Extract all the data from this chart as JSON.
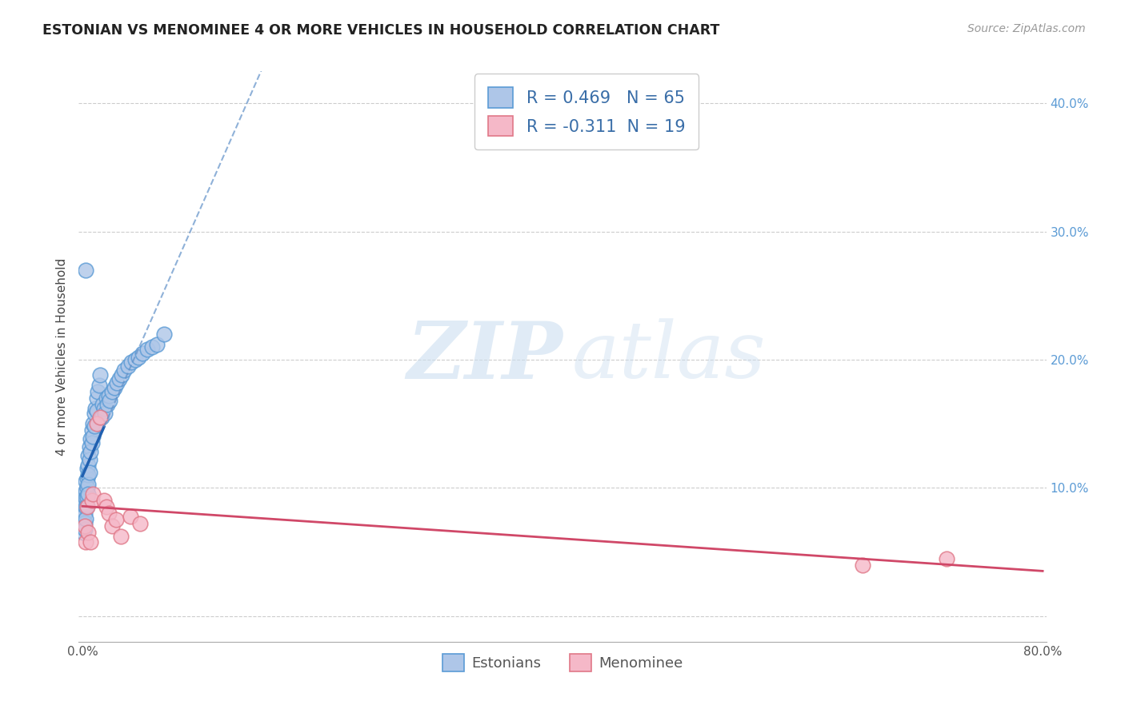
{
  "title": "ESTONIAN VS MENOMINEE 4 OR MORE VEHICLES IN HOUSEHOLD CORRELATION CHART",
  "source": "Source: ZipAtlas.com",
  "ylabel": "4 or more Vehicles in Household",
  "watermark_zip": "ZIP",
  "watermark_atlas": "atlas",
  "xlim": [
    -0.003,
    0.803
  ],
  "ylim": [
    -0.02,
    0.425
  ],
  "xtick_positions": [
    0.0,
    0.1,
    0.2,
    0.3,
    0.4,
    0.5,
    0.6,
    0.7,
    0.8
  ],
  "xtick_labels": [
    "0.0%",
    "",
    "",
    "",
    "",
    "",
    "",
    "",
    "80.0%"
  ],
  "ytick_positions": [
    0.0,
    0.1,
    0.2,
    0.3,
    0.4
  ],
  "ytick_labels": [
    "",
    "10.0%",
    "20.0%",
    "30.0%",
    "40.0%"
  ],
  "grid_color": "#cccccc",
  "bg_color": "#ffffff",
  "estonian_face": "#aec6e8",
  "estonian_edge": "#5b9bd5",
  "menominee_face": "#f5b8c8",
  "menominee_edge": "#e07888",
  "trend_estonian_solid": "#2060b0",
  "trend_estonian_dash": "#6090c8",
  "trend_menominee": "#d04868",
  "r_estonian": 0.469,
  "n_estonian": 65,
  "r_menominee": -0.311,
  "n_menominee": 19,
  "label_estonian": "Estonians",
  "label_menominee": "Menominee",
  "estonian_x": [
    0.001,
    0.001,
    0.001,
    0.001,
    0.002,
    0.002,
    0.002,
    0.002,
    0.002,
    0.003,
    0.003,
    0.003,
    0.003,
    0.003,
    0.003,
    0.004,
    0.004,
    0.004,
    0.004,
    0.004,
    0.005,
    0.005,
    0.005,
    0.005,
    0.005,
    0.006,
    0.006,
    0.006,
    0.007,
    0.007,
    0.008,
    0.008,
    0.009,
    0.009,
    0.01,
    0.01,
    0.011,
    0.012,
    0.012,
    0.013,
    0.014,
    0.015,
    0.016,
    0.017,
    0.018,
    0.019,
    0.02,
    0.021,
    0.022,
    0.023,
    0.025,
    0.027,
    0.029,
    0.031,
    0.033,
    0.035,
    0.038,
    0.041,
    0.044,
    0.047,
    0.05,
    0.054,
    0.058,
    0.062,
    0.068
  ],
  "estonian_y": [
    0.09,
    0.082,
    0.078,
    0.065,
    0.095,
    0.088,
    0.08,
    0.073,
    0.068,
    0.27,
    0.105,
    0.098,
    0.092,
    0.085,
    0.076,
    0.115,
    0.108,
    0.1,
    0.093,
    0.086,
    0.125,
    0.118,
    0.11,
    0.103,
    0.095,
    0.132,
    0.122,
    0.112,
    0.138,
    0.128,
    0.145,
    0.135,
    0.15,
    0.14,
    0.158,
    0.148,
    0.162,
    0.17,
    0.16,
    0.175,
    0.18,
    0.188,
    0.155,
    0.165,
    0.162,
    0.158,
    0.17,
    0.165,
    0.172,
    0.168,
    0.175,
    0.178,
    0.182,
    0.185,
    0.188,
    0.192,
    0.195,
    0.198,
    0.2,
    0.202,
    0.205,
    0.208,
    0.21,
    0.212,
    0.22
  ],
  "menominee_x": [
    0.002,
    0.003,
    0.004,
    0.005,
    0.007,
    0.008,
    0.009,
    0.012,
    0.015,
    0.018,
    0.02,
    0.022,
    0.025,
    0.028,
    0.032,
    0.04,
    0.048,
    0.65,
    0.72
  ],
  "menominee_y": [
    0.07,
    0.058,
    0.085,
    0.065,
    0.058,
    0.09,
    0.095,
    0.15,
    0.155,
    0.09,
    0.085,
    0.08,
    0.07,
    0.075,
    0.062,
    0.078,
    0.072,
    0.04,
    0.045
  ],
  "estonian_trend_x0": 0.0,
  "estonian_trend_x_solid_end": 0.018,
  "estonian_trend_x_dash_end": 0.3,
  "menominee_trend_x0": 0.0,
  "menominee_trend_x1": 0.8
}
